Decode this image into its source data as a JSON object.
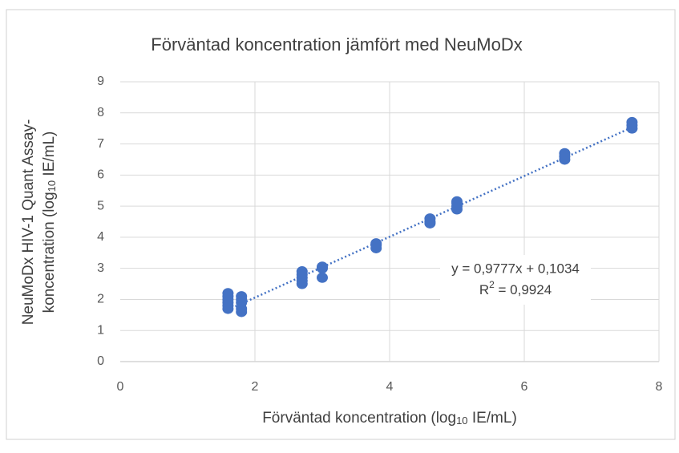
{
  "chart_data": {
    "type": "scatter",
    "title": "Förväntad koncentration jämfört med NeuMoDx",
    "xlabel": {
      "pre": "Förväntad koncentration (log",
      "sub": "10",
      "post": " IE/mL)"
    },
    "ylabel": {
      "line1": "NeuMoDx HIV-1 Quant Assay-",
      "pre": "koncentration (log",
      "sub": "10",
      "post": " IE/mL)"
    },
    "x": [
      1.6,
      1.6,
      1.6,
      1.6,
      1.6,
      1.6,
      1.8,
      1.8,
      1.8,
      1.8,
      1.8,
      2.7,
      2.7,
      2.7,
      2.7,
      2.7,
      3.0,
      3.0,
      3.0,
      3.8,
      3.8,
      3.8,
      4.6,
      4.6,
      4.6,
      5.0,
      5.0,
      5.0,
      5.0,
      6.6,
      6.6,
      6.6,
      7.6,
      7.6,
      7.6
    ],
    "values": [
      1.7,
      1.8,
      1.9,
      2.0,
      2.1,
      2.2,
      1.6,
      1.7,
      1.9,
      2.0,
      2.1,
      2.5,
      2.6,
      2.7,
      2.8,
      2.9,
      2.7,
      3.0,
      3.05,
      3.65,
      3.75,
      3.8,
      4.45,
      4.5,
      4.6,
      4.9,
      5.0,
      5.1,
      5.15,
      6.5,
      6.6,
      6.7,
      7.5,
      7.6,
      7.7
    ],
    "color": "#4472c4",
    "trendline": {
      "slope": 0.9777,
      "intercept": 0.1034,
      "equation": "y = 0,9777x + 0,1034",
      "r2": {
        "base": "R",
        "sup": "2",
        "rest": " = 0,9924"
      }
    },
    "xlim": [
      0,
      8
    ],
    "xticks": [
      0,
      2,
      4,
      6,
      8
    ],
    "ylim": [
      0,
      9
    ],
    "yticks": [
      0,
      1,
      2,
      3,
      4,
      5,
      6,
      7,
      8,
      9
    ],
    "grid": true
  }
}
